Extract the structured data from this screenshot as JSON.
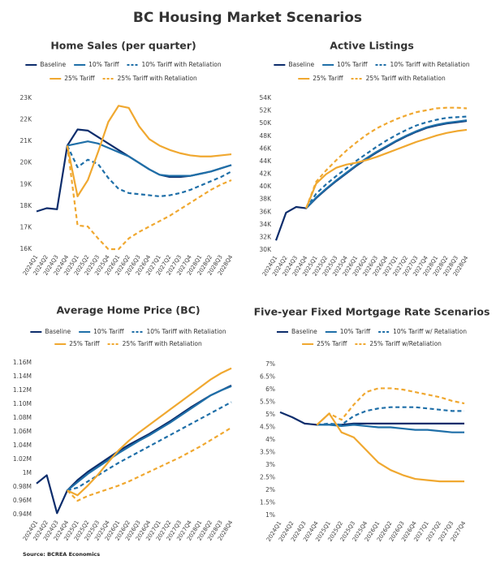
{
  "title": "BC Housing Market Scenarios",
  "source": "Source: BCREA Economics",
  "chart_data": [
    {
      "type": "line",
      "title": "Home Sales (per quarter)",
      "categories": [
        "2024Q1",
        "2024Q2",
        "2024Q3",
        "2024Q4",
        "2025Q1",
        "2025Q2",
        "2025Q3",
        "2025Q4",
        "2026Q1",
        "2026Q2",
        "2026Q3",
        "2026Q4",
        "2027Q1",
        "2027Q2",
        "2027Q3",
        "2027Q4",
        "2028Q1",
        "2028Q2",
        "2028Q3",
        "2028Q4"
      ],
      "ylim": [
        16000,
        23000
      ],
      "yticks": [
        {
          "value": 16000,
          "label": "16K"
        },
        {
          "value": 17000,
          "label": "17K"
        },
        {
          "value": 18000,
          "label": "18K"
        },
        {
          "value": 19000,
          "label": "19K"
        },
        {
          "value": 20000,
          "label": "20K"
        },
        {
          "value": 21000,
          "label": "21K"
        },
        {
          "value": 22000,
          "label": "22K"
        },
        {
          "value": 23000,
          "label": "23K"
        }
      ],
      "grid": false,
      "series": [
        {
          "name": "Baseline",
          "color": "#0d2d6c",
          "dashed": false,
          "values": [
            17750,
            17900,
            17850,
            20800,
            21550,
            21500,
            21200,
            20900,
            20600,
            20300,
            20000,
            19700,
            19450,
            19350,
            19350,
            19400,
            19500,
            19600,
            19750,
            19900
          ]
        },
        {
          "name": "10% Tariff",
          "color": "#1f6fa8",
          "dashed": false,
          "values": [
            null,
            null,
            null,
            20800,
            20900,
            21000,
            20900,
            20700,
            20500,
            20300,
            20000,
            19700,
            19450,
            19400,
            19400,
            19400,
            19500,
            19600,
            19750,
            19900
          ]
        },
        {
          "name": "10% Tariff with Retaliation",
          "color": "#1f6fa8",
          "dashed": true,
          "values": [
            null,
            null,
            null,
            20800,
            19800,
            20150,
            19950,
            19300,
            18800,
            18600,
            18550,
            18500,
            18450,
            18500,
            18600,
            18750,
            18950,
            19150,
            19350,
            19600
          ]
        },
        {
          "name": "25% Tariff",
          "color": "#f0a830",
          "dashed": false,
          "values": [
            null,
            null,
            null,
            20800,
            18450,
            19200,
            20500,
            21900,
            22650,
            22550,
            21700,
            21100,
            20800,
            20600,
            20450,
            20350,
            20300,
            20300,
            20350,
            20400
          ]
        },
        {
          "name": "25% Tariff with Retaliation",
          "color": "#f0a830",
          "dashed": true,
          "values": [
            null,
            null,
            null,
            20800,
            17100,
            17050,
            16500,
            16000,
            16000,
            16500,
            16800,
            17050,
            17300,
            17550,
            17850,
            18150,
            18450,
            18750,
            19000,
            19200
          ]
        }
      ]
    },
    {
      "type": "line",
      "title": "Active Listings",
      "categories": [
        "2024Q1",
        "2024Q2",
        "2024Q3",
        "2024Q4",
        "2025Q1",
        "2025Q2",
        "2025Q3",
        "2025Q4",
        "2026Q1",
        "2026Q2",
        "2026Q3",
        "2026Q4",
        "2027Q1",
        "2027Q2",
        "2027Q3",
        "2027Q4",
        "2028Q1",
        "2028Q2",
        "2028Q3",
        "2028Q4"
      ],
      "ylim": [
        30000,
        54000
      ],
      "yticks": [
        {
          "value": 30000,
          "label": "30K"
        },
        {
          "value": 32000,
          "label": "32K"
        },
        {
          "value": 34000,
          "label": "34K"
        },
        {
          "value": 36000,
          "label": "36K"
        },
        {
          "value": 38000,
          "label": "38K"
        },
        {
          "value": 40000,
          "label": "40K"
        },
        {
          "value": 42000,
          "label": "42K"
        },
        {
          "value": 44000,
          "label": "44K"
        },
        {
          "value": 46000,
          "label": "46K"
        },
        {
          "value": 48000,
          "label": "48K"
        },
        {
          "value": 50000,
          "label": "50K"
        },
        {
          "value": 52000,
          "label": "52K"
        },
        {
          "value": 54000,
          "label": "54K"
        }
      ],
      "grid": false,
      "series": [
        {
          "name": "Baseline",
          "color": "#0d2d6c",
          "dashed": false,
          "values": [
            31500,
            35900,
            36800,
            36600,
            38200,
            39600,
            40900,
            42100,
            43300,
            44400,
            45400,
            46300,
            47200,
            48000,
            48700,
            49300,
            49700,
            50000,
            50200,
            50400
          ]
        },
        {
          "name": "10% Tariff",
          "color": "#1f6fa8",
          "dashed": false,
          "values": [
            null,
            null,
            null,
            36600,
            38300,
            39700,
            41000,
            42200,
            43400,
            44500,
            45500,
            46400,
            47300,
            48100,
            48800,
            49400,
            49800,
            50100,
            50300,
            50500
          ]
        },
        {
          "name": "10% Tariff with Retaliation",
          "color": "#1f6fa8",
          "dashed": true,
          "values": [
            null,
            null,
            null,
            36600,
            38900,
            40400,
            41700,
            42900,
            44100,
            45200,
            46300,
            47300,
            48200,
            49000,
            49700,
            50200,
            50600,
            50900,
            51000,
            51100
          ]
        },
        {
          "name": "25% Tariff",
          "color": "#f0a830",
          "dashed": false,
          "values": [
            null,
            null,
            null,
            36600,
            40500,
            42000,
            43000,
            43500,
            43800,
            44200,
            44700,
            45300,
            45900,
            46500,
            47100,
            47600,
            48100,
            48500,
            48800,
            49000
          ]
        },
        {
          "name": "25% Tariff with Retaliation",
          "color": "#f0a830",
          "dashed": true,
          "values": [
            null,
            null,
            null,
            36600,
            40800,
            42600,
            44200,
            45700,
            47000,
            48200,
            49200,
            50000,
            50700,
            51300,
            51800,
            52100,
            52400,
            52500,
            52500,
            52400
          ]
        }
      ]
    },
    {
      "type": "line",
      "title": "Average Home Price (BC)",
      "categories": [
        "2024Q1",
        "2024Q2",
        "2024Q3",
        "2024Q4",
        "2025Q1",
        "2025Q2",
        "2025Q3",
        "2025Q4",
        "2026Q1",
        "2026Q2",
        "2026Q3",
        "2026Q4",
        "2027Q1",
        "2027Q2",
        "2027Q3",
        "2027Q4",
        "2028Q1",
        "2028Q2",
        "2028Q3",
        "2028Q4"
      ],
      "ylim": [
        940000,
        1160000
      ],
      "yticks": [
        {
          "value": 940000,
          "label": "0.94M"
        },
        {
          "value": 960000,
          "label": "0.96M"
        },
        {
          "value": 980000,
          "label": "0.98M"
        },
        {
          "value": 1000000,
          "label": "1M"
        },
        {
          "value": 1020000,
          "label": "1.02M"
        },
        {
          "value": 1040000,
          "label": "1.04M"
        },
        {
          "value": 1060000,
          "label": "1.06M"
        },
        {
          "value": 1080000,
          "label": "1.08M"
        },
        {
          "value": 1100000,
          "label": "1.10M"
        },
        {
          "value": 1120000,
          "label": "1.12M"
        },
        {
          "value": 1140000,
          "label": "1.14M"
        },
        {
          "value": 1160000,
          "label": "1.16M"
        }
      ],
      "grid": false,
      "series": [
        {
          "name": "Baseline",
          "color": "#0d2d6c",
          "dashed": false,
          "values": [
            985000,
            997000,
            942000,
            975000,
            990000,
            1002000,
            1012000,
            1022000,
            1032000,
            1041000,
            1049000,
            1057000,
            1066000,
            1075000,
            1085000,
            1095000,
            1104000,
            1113000,
            1120000,
            1127000
          ]
        },
        {
          "name": "10% Tariff",
          "color": "#1f6fa8",
          "dashed": false,
          "values": [
            null,
            null,
            null,
            975000,
            987000,
            999000,
            1009000,
            1019000,
            1029000,
            1038000,
            1047000,
            1055000,
            1064000,
            1073000,
            1083000,
            1093000,
            1103000,
            1113000,
            1120000,
            1126000
          ]
        },
        {
          "name": "10% Tariff with Retaliation",
          "color": "#1f6fa8",
          "dashed": true,
          "values": [
            null,
            null,
            null,
            975000,
            979000,
            988000,
            997000,
            1006000,
            1015000,
            1023000,
            1031000,
            1039000,
            1047000,
            1055000,
            1063000,
            1071000,
            1079000,
            1087000,
            1095000,
            1103000
          ]
        },
        {
          "name": "25% Tariff",
          "color": "#f0a830",
          "dashed": false,
          "values": [
            null,
            null,
            null,
            975000,
            968000,
            982000,
            998000,
            1016000,
            1033000,
            1047000,
            1059000,
            1070000,
            1081000,
            1092000,
            1103000,
            1114000,
            1125000,
            1136000,
            1145000,
            1152000
          ]
        },
        {
          "name": "25% Tariff with Retaliation",
          "color": "#f0a830",
          "dashed": true,
          "values": [
            null,
            null,
            null,
            975000,
            960000,
            967000,
            972000,
            977000,
            982000,
            988000,
            995000,
            1002000,
            1009000,
            1016000,
            1023000,
            1031000,
            1039000,
            1048000,
            1057000,
            1066000
          ]
        }
      ]
    },
    {
      "type": "line",
      "title": "Five-year Fixed Mortgage Rate Scenarios",
      "categories": [
        "2024Q1",
        "2024Q2",
        "2024Q3",
        "2024Q4",
        "2025Q1",
        "2025Q2",
        "2025Q3",
        "2025Q4",
        "2026Q1",
        "2026Q2",
        "2026Q3",
        "2026Q4",
        "2027Q1",
        "2027Q2",
        "2027Q3",
        "2027Q4"
      ],
      "ylim": [
        1,
        7
      ],
      "yticks": [
        {
          "value": 1,
          "label": "1%"
        },
        {
          "value": 1.5,
          "label": "1.5%"
        },
        {
          "value": 2,
          "label": "2%"
        },
        {
          "value": 2.5,
          "label": "2.5%"
        },
        {
          "value": 3,
          "label": "3%"
        },
        {
          "value": 3.5,
          "label": "3.5%"
        },
        {
          "value": 4,
          "label": "4%"
        },
        {
          "value": 4.5,
          "label": "4.5%"
        },
        {
          "value": 5,
          "label": "5%"
        },
        {
          "value": 5.5,
          "label": "5.5%"
        },
        {
          "value": 6,
          "label": "6%"
        },
        {
          "value": 6.5,
          "label": "6.5%"
        },
        {
          "value": 7,
          "label": "7%"
        }
      ],
      "grid": false,
      "series": [
        {
          "name": "Baseline",
          "color": "#0d2d6c",
          "dashed": false,
          "values": [
            5.1,
            4.9,
            4.65,
            4.6,
            4.6,
            4.6,
            4.65,
            4.65,
            4.65,
            4.65,
            4.65,
            4.65,
            4.65,
            4.65,
            4.65,
            4.65
          ]
        },
        {
          "name": "10% Tariff",
          "color": "#1f6fa8",
          "dashed": false,
          "values": [
            null,
            null,
            null,
            4.6,
            4.6,
            4.55,
            4.6,
            4.55,
            4.5,
            4.5,
            4.45,
            4.4,
            4.4,
            4.35,
            4.3,
            4.3
          ]
        },
        {
          "name": "10% Tariff w/ Retaliation",
          "color": "#1f6fa8",
          "dashed": true,
          "values": [
            null,
            null,
            null,
            4.6,
            4.65,
            4.6,
            4.95,
            5.15,
            5.25,
            5.3,
            5.3,
            5.3,
            5.25,
            5.2,
            5.15,
            5.15
          ]
        },
        {
          "name": "25% Tariff",
          "color": "#f0a830",
          "dashed": false,
          "values": [
            null,
            null,
            null,
            4.6,
            5.05,
            4.3,
            4.1,
            3.6,
            3.1,
            2.8,
            2.6,
            2.45,
            2.4,
            2.35,
            2.35,
            2.35
          ]
        },
        {
          "name": "25% Tariff w/Retaliation",
          "color": "#f0a830",
          "dashed": true,
          "values": [
            null,
            null,
            null,
            4.6,
            5.05,
            4.8,
            5.4,
            5.9,
            6.05,
            6.05,
            6.0,
            5.9,
            5.8,
            5.7,
            5.55,
            5.45
          ]
        }
      ]
    }
  ]
}
